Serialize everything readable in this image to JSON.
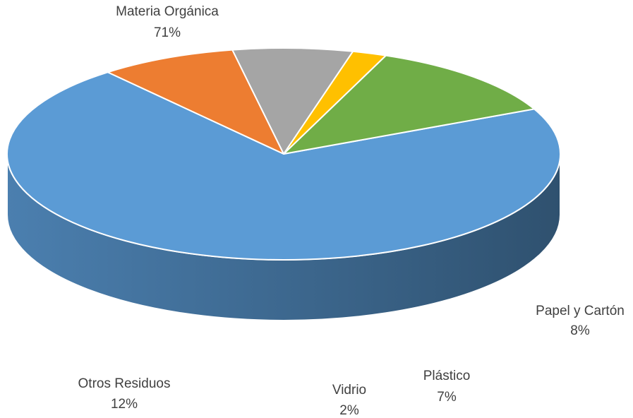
{
  "chart_data": {
    "type": "pie",
    "title": "",
    "slices": [
      {
        "label": "Materia Orgánica",
        "value": 71,
        "display": "71%",
        "color": "#5b9bd5"
      },
      {
        "label": "Papel y Cartón",
        "value": 8,
        "display": "8%",
        "color": "#ed7d31"
      },
      {
        "label": "Plástico",
        "value": 7,
        "display": "7%",
        "color": "#a5a5a5"
      },
      {
        "label": "Vidrio",
        "value": 2,
        "display": "2%",
        "color": "#ffc000"
      },
      {
        "label": "Otros Residuos",
        "value": 12,
        "display": "12%",
        "color": "#70ad47"
      }
    ]
  }
}
